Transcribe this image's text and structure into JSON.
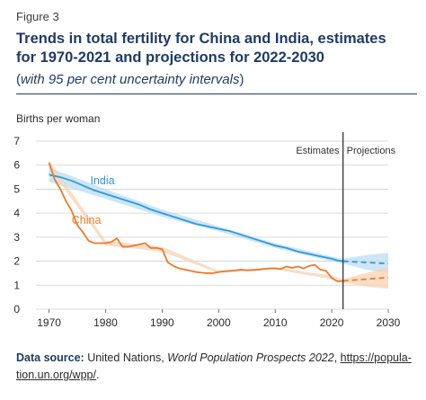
{
  "figure_label": "Figure 3",
  "title_line1": "Trends in total fertility for China and India, estimates",
  "title_line2": "for 1970-2021 and projections for 2022-2030",
  "subtitle_open": "(",
  "subtitle_text": "with 95 per cent uncertainty intervals",
  "subtitle_close": ")",
  "source": {
    "label": "Data source:",
    "text_before": " United Nations, ",
    "publication": "World Population Prospects 2022",
    "text_between": ", ",
    "link_line1": "https://popula-",
    "link_line2": "tion.un.org/wpp/",
    "text_after": "."
  },
  "colors": {
    "india": "#2f9bd6",
    "india_band": "#bcdcf2",
    "china": "#ec7a2c",
    "china_band": "#f7d2b4",
    "divider": "#333333",
    "grid": "#cfcfcf"
  },
  "chart_data": {
    "type": "line",
    "ylabel": "Births per woman",
    "xlabel": "",
    "xlim": [
      1968,
      2030
    ],
    "ylim": [
      0,
      7
    ],
    "x_ticks": [
      1970,
      1980,
      1990,
      2000,
      2010,
      2020,
      2030
    ],
    "y_ticks": [
      0,
      1,
      2,
      3,
      4,
      5,
      6,
      7
    ],
    "grid": "horizontal",
    "divider_year": 2022,
    "period_labels": [
      "Estimates",
      "Projections"
    ],
    "series": [
      {
        "name": "India",
        "color": "#2f9bd6",
        "estimates": [
          [
            1970,
            5.6
          ],
          [
            1972,
            5.5
          ],
          [
            1974,
            5.35
          ],
          [
            1976,
            5.15
          ],
          [
            1978,
            4.95
          ],
          [
            1980,
            4.8
          ],
          [
            1982,
            4.65
          ],
          [
            1984,
            4.5
          ],
          [
            1986,
            4.35
          ],
          [
            1988,
            4.15
          ],
          [
            1990,
            4.0
          ],
          [
            1992,
            3.85
          ],
          [
            1994,
            3.7
          ],
          [
            1996,
            3.55
          ],
          [
            1998,
            3.45
          ],
          [
            2000,
            3.35
          ],
          [
            2002,
            3.25
          ],
          [
            2004,
            3.1
          ],
          [
            2006,
            2.95
          ],
          [
            2008,
            2.8
          ],
          [
            2010,
            2.65
          ],
          [
            2012,
            2.55
          ],
          [
            2014,
            2.4
          ],
          [
            2016,
            2.3
          ],
          [
            2018,
            2.2
          ],
          [
            2020,
            2.1
          ],
          [
            2021,
            2.03
          ],
          [
            2022,
            2.0
          ]
        ],
        "projections": [
          [
            2022,
            2.0
          ],
          [
            2026,
            1.95
          ],
          [
            2030,
            1.9
          ]
        ],
        "band_estimates": [
          [
            1970,
            5.3,
            5.9
          ],
          [
            1980,
            4.6,
            5.0
          ],
          [
            1990,
            3.85,
            4.15
          ],
          [
            2000,
            3.25,
            3.45
          ],
          [
            2010,
            2.55,
            2.75
          ],
          [
            2020,
            2.0,
            2.2
          ],
          [
            2022,
            1.9,
            2.1
          ]
        ],
        "band_projections": [
          [
            2022,
            1.9,
            2.1
          ],
          [
            2026,
            1.65,
            2.25
          ],
          [
            2030,
            1.5,
            2.35
          ]
        ]
      },
      {
        "name": "China",
        "color": "#ec7a2c",
        "estimates": [
          [
            1970,
            6.1
          ],
          [
            1971,
            5.4
          ],
          [
            1972,
            5.0
          ],
          [
            1973,
            4.5
          ],
          [
            1974,
            4.1
          ],
          [
            1975,
            3.5
          ],
          [
            1976,
            3.2
          ],
          [
            1977,
            2.85
          ],
          [
            1978,
            2.75
          ],
          [
            1979,
            2.75
          ],
          [
            1980,
            2.75
          ],
          [
            1981,
            2.8
          ],
          [
            1982,
            2.95
          ],
          [
            1983,
            2.6
          ],
          [
            1984,
            2.6
          ],
          [
            1985,
            2.65
          ],
          [
            1986,
            2.7
          ],
          [
            1987,
            2.75
          ],
          [
            1988,
            2.55
          ],
          [
            1989,
            2.55
          ],
          [
            1990,
            2.5
          ],
          [
            1991,
            1.95
          ],
          [
            1992,
            1.8
          ],
          [
            1993,
            1.7
          ],
          [
            1994,
            1.65
          ],
          [
            1995,
            1.6
          ],
          [
            1996,
            1.55
          ],
          [
            1997,
            1.52
          ],
          [
            1998,
            1.5
          ],
          [
            1999,
            1.5
          ],
          [
            2000,
            1.55
          ],
          [
            2001,
            1.58
          ],
          [
            2002,
            1.6
          ],
          [
            2003,
            1.62
          ],
          [
            2004,
            1.65
          ],
          [
            2005,
            1.62
          ],
          [
            2006,
            1.63
          ],
          [
            2007,
            1.65
          ],
          [
            2008,
            1.68
          ],
          [
            2009,
            1.7
          ],
          [
            2010,
            1.7
          ],
          [
            2011,
            1.68
          ],
          [
            2012,
            1.78
          ],
          [
            2013,
            1.72
          ],
          [
            2014,
            1.78
          ],
          [
            2015,
            1.7
          ],
          [
            2016,
            1.8
          ],
          [
            2017,
            1.85
          ],
          [
            2018,
            1.65
          ],
          [
            2019,
            1.6
          ],
          [
            2020,
            1.3
          ],
          [
            2021,
            1.16
          ],
          [
            2022,
            1.18
          ]
        ],
        "projections": [
          [
            2022,
            1.18
          ],
          [
            2026,
            1.25
          ],
          [
            2030,
            1.32
          ]
        ],
        "band_estimates": [
          [
            1970,
            5.9,
            6.2
          ],
          [
            1980,
            2.65,
            2.85
          ],
          [
            1990,
            2.4,
            2.6
          ],
          [
            2000,
            1.5,
            1.6
          ],
          [
            2010,
            1.65,
            1.75
          ],
          [
            2020,
            1.25,
            1.4
          ],
          [
            2022,
            1.1,
            1.25
          ]
        ],
        "band_projections": [
          [
            2022,
            1.1,
            1.25
          ],
          [
            2026,
            0.95,
            1.5
          ],
          [
            2030,
            0.85,
            1.75
          ]
        ]
      }
    ]
  }
}
